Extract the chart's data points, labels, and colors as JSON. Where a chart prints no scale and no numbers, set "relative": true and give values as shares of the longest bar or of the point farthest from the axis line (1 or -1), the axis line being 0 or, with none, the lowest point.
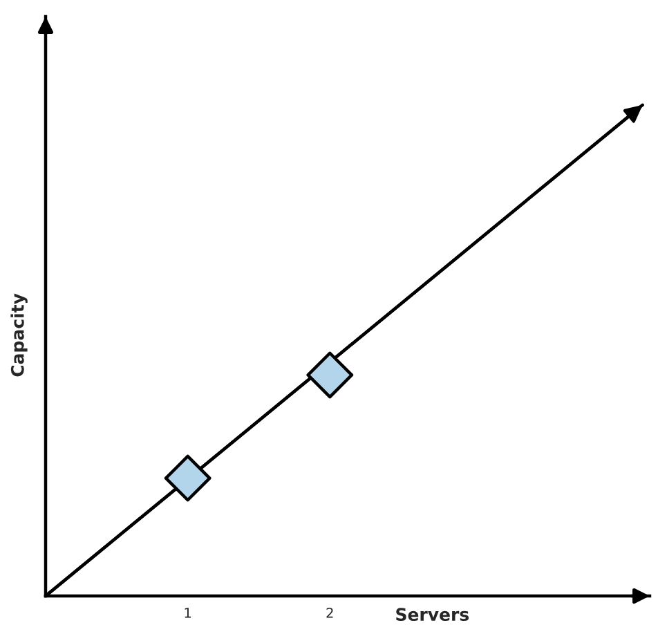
{
  "chart_data": {
    "type": "line",
    "xlabel": "Servers",
    "ylabel": "Capacity",
    "relative": true,
    "tick_labels": "x",
    "xlim": [
      0,
      4.25
    ],
    "xticks": [
      1,
      2
    ],
    "series": [
      {
        "color": "#000000",
        "marker": "none",
        "line_style": "solid",
        "x": [
          0,
          4.2
        ],
        "values": [
          0,
          1
        ]
      },
      {
        "type": "scatter",
        "color": "#b3d5ec",
        "marker": "diamond",
        "x": [
          1,
          2
        ],
        "values": [
          0.24,
          0.45
        ]
      }
    ]
  }
}
